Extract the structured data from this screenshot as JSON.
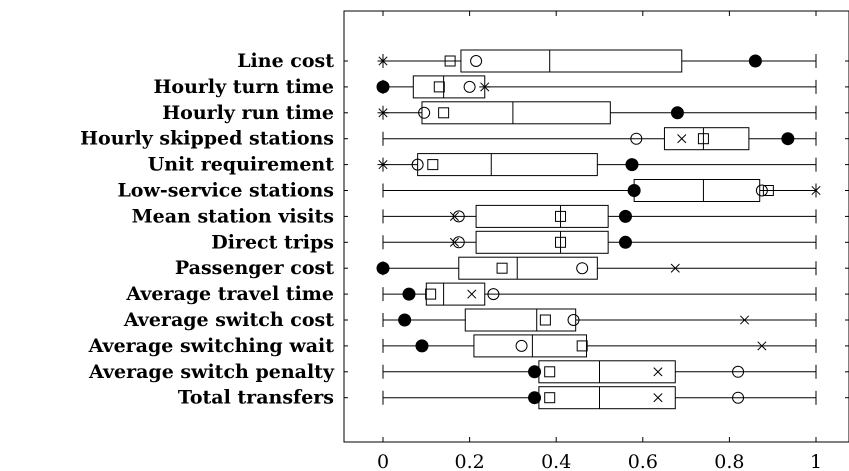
{
  "chart_data": {
    "type": "boxplot",
    "orientation": "horizontal",
    "categories": [
      "Line cost",
      "Hourly turn time",
      "Hourly run time",
      "Hourly skipped stations",
      "Unit requirement",
      "Low-service stations",
      "Mean station visits",
      "Direct trips",
      "Passenger cost",
      "Average travel time",
      "Average switch cost",
      "Average switching wait",
      "Average switch penalty",
      "Total transfers"
    ],
    "boxes": [
      {
        "whisker_low": 0.0,
        "q1": 0.18,
        "median": 0.385,
        "q3": 0.69,
        "whisker_high": 1.0
      },
      {
        "whisker_low": 0.0,
        "q1": 0.07,
        "median": 0.14,
        "q3": 0.235,
        "whisker_high": 1.0
      },
      {
        "whisker_low": 0.0,
        "q1": 0.09,
        "median": 0.3,
        "q3": 0.525,
        "whisker_high": 1.0
      },
      {
        "whisker_low": 0.0,
        "q1": 0.65,
        "median": 0.74,
        "q3": 0.845,
        "whisker_high": 1.0
      },
      {
        "whisker_low": 0.0,
        "q1": 0.08,
        "median": 0.25,
        "q3": 0.495,
        "whisker_high": 1.0
      },
      {
        "whisker_low": 0.0,
        "q1": 0.58,
        "median": 0.74,
        "q3": 0.87,
        "whisker_high": 1.0
      },
      {
        "whisker_low": 0.0,
        "q1": 0.215,
        "median": 0.41,
        "q3": 0.52,
        "whisker_high": 1.0
      },
      {
        "whisker_low": 0.0,
        "q1": 0.215,
        "median": 0.41,
        "q3": 0.52,
        "whisker_high": 1.0
      },
      {
        "whisker_low": 0.0,
        "q1": 0.175,
        "median": 0.31,
        "q3": 0.495,
        "whisker_high": 1.0
      },
      {
        "whisker_low": 0.0,
        "q1": 0.1,
        "median": 0.14,
        "q3": 0.235,
        "whisker_high": 1.0
      },
      {
        "whisker_low": 0.0,
        "q1": 0.19,
        "median": 0.355,
        "q3": 0.445,
        "whisker_high": 1.0
      },
      {
        "whisker_low": 0.0,
        "q1": 0.21,
        "median": 0.345,
        "q3": 0.47,
        "whisker_high": 1.0
      },
      {
        "whisker_low": 0.0,
        "q1": 0.36,
        "median": 0.5,
        "q3": 0.675,
        "whisker_high": 1.0
      },
      {
        "whisker_low": 0.0,
        "q1": 0.36,
        "median": 0.5,
        "q3": 0.675,
        "whisker_high": 1.0
      }
    ],
    "markers": [
      {
        "filled_circle": 0.86,
        "open_circle": 0.215,
        "square": 0.155,
        "cross": 0.0,
        "cross_style": "star"
      },
      {
        "filled_circle": 0.0,
        "open_circle": 0.2,
        "square": 0.13,
        "cross": 0.235,
        "cross_style": "star"
      },
      {
        "filled_circle": 0.68,
        "open_circle": 0.095,
        "square": 0.14,
        "cross": 0.0,
        "cross_style": "star"
      },
      {
        "filled_circle": 0.935,
        "open_circle": 0.585,
        "square": 0.74,
        "cross": 0.69,
        "cross_style": "x"
      },
      {
        "filled_circle": 0.575,
        "open_circle": 0.08,
        "square": 0.115,
        "cross": 0.0,
        "cross_style": "star"
      },
      {
        "filled_circle": 0.58,
        "open_circle": 0.875,
        "square": 0.89,
        "cross": 1.0,
        "cross_style": "x"
      },
      {
        "filled_circle": 0.56,
        "open_circle": 0.175,
        "square": 0.41,
        "cross": 0.165,
        "cross_style": "x"
      },
      {
        "filled_circle": 0.56,
        "open_circle": 0.175,
        "square": 0.41,
        "cross": 0.165,
        "cross_style": "x"
      },
      {
        "filled_circle": 0.0,
        "open_circle": 0.46,
        "square": 0.275,
        "cross": 0.675,
        "cross_style": "x"
      },
      {
        "filled_circle": 0.06,
        "open_circle": 0.255,
        "square": 0.11,
        "cross": 0.205,
        "cross_style": "x"
      },
      {
        "filled_circle": 0.05,
        "open_circle": 0.44,
        "square": 0.375,
        "cross": 0.835,
        "cross_style": "x"
      },
      {
        "filled_circle": 0.09,
        "open_circle": 0.32,
        "square": 0.46,
        "cross": 0.875,
        "cross_style": "x"
      },
      {
        "filled_circle": 0.35,
        "open_circle": 0.82,
        "square": 0.385,
        "cross": 0.635,
        "cross_style": "x"
      },
      {
        "filled_circle": 0.35,
        "open_circle": 0.82,
        "square": 0.385,
        "cross": 0.635,
        "cross_style": "x"
      }
    ],
    "x_ticks": [
      "0",
      "0.2",
      "0.4",
      "0.6",
      "0.8",
      "1"
    ],
    "x_tick_values": [
      0,
      0.2,
      0.4,
      0.6,
      0.8,
      1
    ],
    "xlim": [
      -0.09,
      1.07
    ],
    "title": "",
    "xlabel": "",
    "ylabel": "",
    "grid": false,
    "legend": "none",
    "colors": {
      "stroke": "#000000",
      "background": "#ffffff"
    }
  }
}
